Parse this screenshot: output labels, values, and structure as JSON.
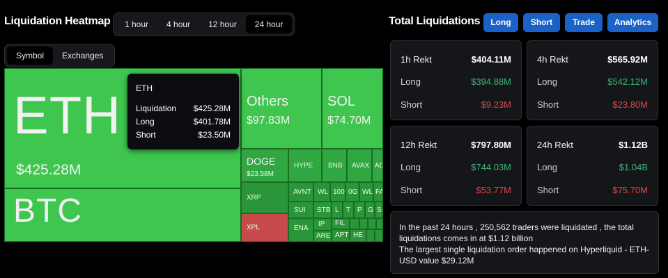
{
  "heatmap": {
    "title": "Liquidation Heatmap",
    "time_options": [
      "1 hour",
      "4 hour",
      "12 hour",
      "24 hour"
    ],
    "active_time": "24 hour",
    "view_options": [
      "Symbol",
      "Exchanges"
    ],
    "active_view": "Symbol",
    "tiles": {
      "eth": {
        "label": "ETH",
        "value": "$425.28M"
      },
      "btc": {
        "label": "BTC"
      },
      "others": {
        "label": "Others",
        "value": "$97.83M"
      },
      "sol": {
        "label": "SOL",
        "value": "$74.70M"
      },
      "doge": {
        "label": "DOGE",
        "value": "$23.58M"
      },
      "hype": "HYPE",
      "bnb": "BNB",
      "avax": "AVAX",
      "ada": "AD",
      "xrp": "XRP",
      "xpl": "XPL",
      "avnt": "AVNT",
      "wl": "WL",
      "n100": "100",
      "n0g": "0G",
      "wlfi": "WL",
      "fa": "FA",
      "sui": "SUI",
      "stb": "STB",
      "l": "L",
      "t": "T",
      "p": "P",
      "g": "G",
      "s": "S",
      "ena": "ENA",
      "ip": "IP",
      "fil": "FIL",
      "are": "ARE",
      "apt": "APT",
      "hr": "HE"
    },
    "tooltip": {
      "title": "ETH",
      "rows": [
        {
          "label": "Liquidation",
          "value": "$425.28M"
        },
        {
          "label": "Long",
          "value": "$401.78M"
        },
        {
          "label": "Short",
          "value": "$23.50M"
        }
      ]
    }
  },
  "totals": {
    "title": "Total Liquidations",
    "buttons": [
      "Long",
      "Short",
      "Trade",
      "Analytics"
    ],
    "cards": [
      {
        "period": "1h Rekt",
        "total": "$404.11M",
        "long_label": "Long",
        "long": "$394.88M",
        "short_label": "Short",
        "short": "$9.23M"
      },
      {
        "period": "4h Rekt",
        "total": "$565.92M",
        "long_label": "Long",
        "long": "$542.12M",
        "short_label": "Short",
        "short": "$23.80M"
      },
      {
        "period": "12h Rekt",
        "total": "$797.80M",
        "long_label": "Long",
        "long": "$744.03M",
        "short_label": "Short",
        "short": "$53.77M"
      },
      {
        "period": "24h Rekt",
        "total": "$1.12B",
        "long_label": "Long",
        "long": "$1.04B",
        "short_label": "Short",
        "short": "$75.70M"
      }
    ],
    "summary_line1": "In the past 24 hours , 250,562 traders were liquidated , the total liquidations comes in at $1.12 billion",
    "summary_line2": "The largest single liquidation order happened on Hyperliquid - ETH-USD value $29.12M"
  },
  "colors": {
    "accent": "#1a62c7",
    "long": "#3fb47a",
    "short": "#e04848",
    "tile_green": "#3ec64f",
    "tile_red": "#c94a4a"
  }
}
